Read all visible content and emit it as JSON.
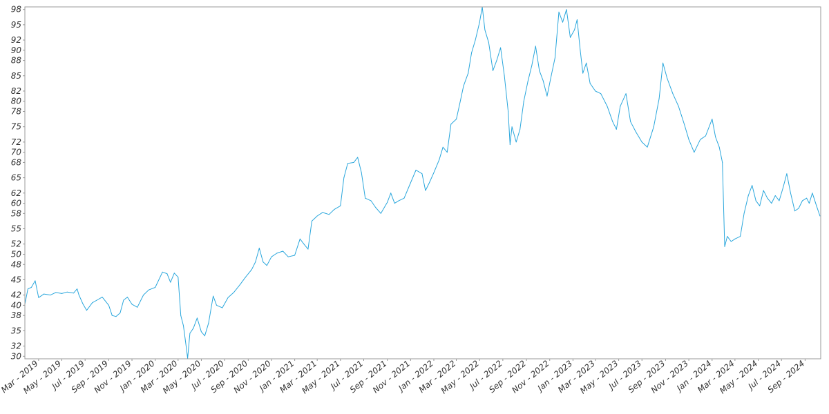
{
  "chart_data": {
    "type": "line",
    "title": "",
    "xlabel": "",
    "ylabel": "",
    "ylim": [
      29.5,
      98.5
    ],
    "grid": false,
    "legend": "none",
    "line_color": "#29a6dc",
    "y_ticks": [
      30,
      32,
      35,
      38,
      40,
      42,
      45,
      48,
      50,
      52,
      55,
      58,
      60,
      62,
      65,
      68,
      70,
      72,
      75,
      78,
      80,
      82,
      85,
      88,
      90,
      92,
      95,
      98
    ],
    "x_ticks": [
      {
        "label": "Mar - 2019",
        "x": "2019-03-01"
      },
      {
        "label": "May - 2019",
        "x": "2019-05-01"
      },
      {
        "label": "Jul - 2019",
        "x": "2019-07-01"
      },
      {
        "label": "Sep - 2019",
        "x": "2019-09-01"
      },
      {
        "label": "Nov - 2019",
        "x": "2019-11-01"
      },
      {
        "label": "Jan - 2020",
        "x": "2020-01-01"
      },
      {
        "label": "Mar - 2020",
        "x": "2020-03-01"
      },
      {
        "label": "May - 2020",
        "x": "2020-05-01"
      },
      {
        "label": "Jul - 2020",
        "x": "2020-07-01"
      },
      {
        "label": "Sep - 2020",
        "x": "2020-09-01"
      },
      {
        "label": "Nov - 2020",
        "x": "2020-11-01"
      },
      {
        "label": "Jan - 2021",
        "x": "2021-01-01"
      },
      {
        "label": "Mar - 2021",
        "x": "2021-03-01"
      },
      {
        "label": "May - 2021",
        "x": "2021-05-01"
      },
      {
        "label": "Jul - 2021",
        "x": "2021-07-01"
      },
      {
        "label": "Sep - 2021",
        "x": "2021-09-01"
      },
      {
        "label": "Nov - 2021",
        "x": "2021-11-01"
      },
      {
        "label": "Jan - 2022",
        "x": "2022-01-01"
      },
      {
        "label": "Mar - 2022",
        "x": "2022-03-01"
      },
      {
        "label": "May - 2022",
        "x": "2022-05-01"
      },
      {
        "label": "Jul - 2022",
        "x": "2022-07-01"
      },
      {
        "label": "Sep - 2022",
        "x": "2022-09-01"
      },
      {
        "label": "Nov - 2022",
        "x": "2022-11-01"
      },
      {
        "label": "Jan - 2023",
        "x": "2023-01-01"
      },
      {
        "label": "Mar - 2023",
        "x": "2023-03-01"
      },
      {
        "label": "May - 2023",
        "x": "2023-05-01"
      },
      {
        "label": "Jul - 2023",
        "x": "2023-07-01"
      },
      {
        "label": "Sep - 2023",
        "x": "2023-09-01"
      },
      {
        "label": "Nov - 2023",
        "x": "2023-11-01"
      },
      {
        "label": "Jan - 2024",
        "x": "2024-01-01"
      },
      {
        "label": "Mar - 2024",
        "x": "2024-03-01"
      },
      {
        "label": "May - 2024",
        "x": "2024-05-01"
      },
      {
        "label": "Jul - 2024",
        "x": "2024-07-01"
      },
      {
        "label": "Sep - 2024",
        "x": "2024-09-01"
      }
    ],
    "series": [
      {
        "points": [
          [
            "2019-01-24",
            40.2
          ],
          [
            "2019-02-01",
            43.2
          ],
          [
            "2019-02-10",
            43.5
          ],
          [
            "2019-02-20",
            44.8
          ],
          [
            "2019-03-01",
            41.5
          ],
          [
            "2019-03-15",
            42.2
          ],
          [
            "2019-04-01",
            42.0
          ],
          [
            "2019-04-15",
            42.5
          ],
          [
            "2019-05-01",
            42.3
          ],
          [
            "2019-05-15",
            42.6
          ],
          [
            "2019-06-01",
            42.4
          ],
          [
            "2019-06-10",
            43.2
          ],
          [
            "2019-06-15",
            42.0
          ],
          [
            "2019-06-25",
            40.3
          ],
          [
            "2019-07-05",
            39.0
          ],
          [
            "2019-07-20",
            40.5
          ],
          [
            "2019-08-01",
            41.0
          ],
          [
            "2019-08-15",
            41.6
          ],
          [
            "2019-09-01",
            40.0
          ],
          [
            "2019-09-10",
            38.0
          ],
          [
            "2019-09-20",
            37.8
          ],
          [
            "2019-10-01",
            38.5
          ],
          [
            "2019-10-10",
            41.0
          ],
          [
            "2019-10-20",
            41.6
          ],
          [
            "2019-11-01",
            40.2
          ],
          [
            "2019-11-15",
            39.6
          ],
          [
            "2019-12-01",
            42.0
          ],
          [
            "2019-12-15",
            43.0
          ],
          [
            "2020-01-01",
            43.5
          ],
          [
            "2020-01-20",
            46.5
          ],
          [
            "2020-02-01",
            46.2
          ],
          [
            "2020-02-10",
            44.5
          ],
          [
            "2020-02-20",
            46.3
          ],
          [
            "2020-03-01",
            45.5
          ],
          [
            "2020-03-08",
            38.0
          ],
          [
            "2020-03-15",
            36.0
          ],
          [
            "2020-03-22",
            32.0
          ],
          [
            "2020-03-26",
            29.6
          ],
          [
            "2020-04-01",
            34.5
          ],
          [
            "2020-04-10",
            35.5
          ],
          [
            "2020-04-20",
            37.5
          ],
          [
            "2020-05-01",
            34.8
          ],
          [
            "2020-05-10",
            34.0
          ],
          [
            "2020-05-20",
            36.5
          ],
          [
            "2020-06-01",
            41.8
          ],
          [
            "2020-06-10",
            40.0
          ],
          [
            "2020-06-25",
            39.5
          ],
          [
            "2020-07-10",
            41.5
          ],
          [
            "2020-07-25",
            42.5
          ],
          [
            "2020-08-10",
            44.0
          ],
          [
            "2020-08-25",
            45.5
          ],
          [
            "2020-09-10",
            47.0
          ],
          [
            "2020-09-20",
            48.5
          ],
          [
            "2020-09-30",
            51.2
          ],
          [
            "2020-10-10",
            48.5
          ],
          [
            "2020-10-20",
            47.8
          ],
          [
            "2020-11-01",
            49.5
          ],
          [
            "2020-11-15",
            50.2
          ],
          [
            "2020-12-01",
            50.6
          ],
          [
            "2020-12-15",
            49.5
          ],
          [
            "2021-01-01",
            49.8
          ],
          [
            "2021-01-15",
            53.0
          ],
          [
            "2021-01-25",
            52.0
          ],
          [
            "2021-02-05",
            51.0
          ],
          [
            "2021-02-15",
            56.5
          ],
          [
            "2021-03-01",
            57.5
          ],
          [
            "2021-03-15",
            58.2
          ],
          [
            "2021-04-01",
            57.8
          ],
          [
            "2021-04-15",
            58.8
          ],
          [
            "2021-05-01",
            59.5
          ],
          [
            "2021-05-10",
            65.0
          ],
          [
            "2021-05-20",
            67.8
          ],
          [
            "2021-06-05",
            68.0
          ],
          [
            "2021-06-15",
            69.0
          ],
          [
            "2021-06-25",
            66.0
          ],
          [
            "2021-07-05",
            61.0
          ],
          [
            "2021-07-20",
            60.5
          ],
          [
            "2021-08-01",
            59.2
          ],
          [
            "2021-08-15",
            58.0
          ],
          [
            "2021-09-01",
            60.2
          ],
          [
            "2021-09-10",
            62.0
          ],
          [
            "2021-09-20",
            60.0
          ],
          [
            "2021-10-01",
            60.5
          ],
          [
            "2021-10-15",
            61.0
          ],
          [
            "2021-11-01",
            64.0
          ],
          [
            "2021-11-15",
            66.5
          ],
          [
            "2021-12-01",
            65.8
          ],
          [
            "2021-12-10",
            62.5
          ],
          [
            "2021-12-20",
            64.0
          ],
          [
            "2022-01-01",
            66.0
          ],
          [
            "2022-01-15",
            68.5
          ],
          [
            "2022-01-25",
            71.0
          ],
          [
            "2022-02-05",
            70.0
          ],
          [
            "2022-02-15",
            75.5
          ],
          [
            "2022-03-01",
            76.5
          ],
          [
            "2022-03-10",
            79.5
          ],
          [
            "2022-03-20",
            83.0
          ],
          [
            "2022-04-01",
            85.5
          ],
          [
            "2022-04-10",
            89.5
          ],
          [
            "2022-04-20",
            92.0
          ],
          [
            "2022-05-01",
            95.5
          ],
          [
            "2022-05-08",
            98.5
          ],
          [
            "2022-05-15",
            94.0
          ],
          [
            "2022-05-25",
            91.5
          ],
          [
            "2022-06-05",
            86.0
          ],
          [
            "2022-06-15",
            88.0
          ],
          [
            "2022-06-25",
            90.5
          ],
          [
            "2022-07-05",
            85.0
          ],
          [
            "2022-07-15",
            78.0
          ],
          [
            "2022-07-20",
            71.5
          ],
          [
            "2022-07-25",
            75.0
          ],
          [
            "2022-08-05",
            72.0
          ],
          [
            "2022-08-15",
            74.5
          ],
          [
            "2022-08-25",
            80.0
          ],
          [
            "2022-09-05",
            84.0
          ],
          [
            "2022-09-15",
            87.0
          ],
          [
            "2022-09-25",
            90.8
          ],
          [
            "2022-10-05",
            86.0
          ],
          [
            "2022-10-15",
            84.0
          ],
          [
            "2022-10-25",
            81.0
          ],
          [
            "2022-11-05",
            85.0
          ],
          [
            "2022-11-15",
            88.5
          ],
          [
            "2022-11-25",
            97.5
          ],
          [
            "2022-12-05",
            95.5
          ],
          [
            "2022-12-15",
            98.0
          ],
          [
            "2022-12-25",
            92.5
          ],
          [
            "2023-01-05",
            94.0
          ],
          [
            "2023-01-12",
            96.0
          ],
          [
            "2023-01-20",
            90.0
          ],
          [
            "2023-01-27",
            85.5
          ],
          [
            "2023-02-05",
            87.5
          ],
          [
            "2023-02-15",
            83.5
          ],
          [
            "2023-03-01",
            82.0
          ],
          [
            "2023-03-15",
            81.5
          ],
          [
            "2023-04-01",
            79.0
          ],
          [
            "2023-04-15",
            76.0
          ],
          [
            "2023-04-25",
            74.5
          ],
          [
            "2023-05-05",
            79.0
          ],
          [
            "2023-05-20",
            81.5
          ],
          [
            "2023-06-01",
            76.0
          ],
          [
            "2023-06-15",
            74.0
          ],
          [
            "2023-07-01",
            72.0
          ],
          [
            "2023-07-15",
            71.0
          ],
          [
            "2023-08-01",
            75.0
          ],
          [
            "2023-08-15",
            80.5
          ],
          [
            "2023-08-25",
            87.5
          ],
          [
            "2023-09-05",
            84.5
          ],
          [
            "2023-09-20",
            81.5
          ],
          [
            "2023-10-05",
            79.0
          ],
          [
            "2023-10-20",
            75.5
          ],
          [
            "2023-11-01",
            72.5
          ],
          [
            "2023-11-15",
            70.0
          ],
          [
            "2023-12-01",
            72.5
          ],
          [
            "2023-12-15",
            73.2
          ],
          [
            "2024-01-01",
            76.5
          ],
          [
            "2024-01-10",
            73.0
          ],
          [
            "2024-01-20",
            71.0
          ],
          [
            "2024-01-28",
            68.0
          ],
          [
            "2024-02-03",
            51.5
          ],
          [
            "2024-02-10",
            53.5
          ],
          [
            "2024-02-20",
            52.5
          ],
          [
            "2024-03-01",
            53.0
          ],
          [
            "2024-03-15",
            53.5
          ],
          [
            "2024-03-25",
            58.0
          ],
          [
            "2024-04-05",
            61.5
          ],
          [
            "2024-04-15",
            63.5
          ],
          [
            "2024-04-25",
            60.5
          ],
          [
            "2024-05-05",
            59.5
          ],
          [
            "2024-05-15",
            62.5
          ],
          [
            "2024-05-25",
            61.0
          ],
          [
            "2024-06-05",
            60.0
          ],
          [
            "2024-06-15",
            61.5
          ],
          [
            "2024-06-25",
            60.5
          ],
          [
            "2024-07-05",
            63.0
          ],
          [
            "2024-07-15",
            65.8
          ],
          [
            "2024-07-25",
            62.0
          ],
          [
            "2024-08-05",
            58.5
          ],
          [
            "2024-08-15",
            59.0
          ],
          [
            "2024-08-25",
            60.5
          ],
          [
            "2024-09-05",
            61.0
          ],
          [
            "2024-09-12",
            60.0
          ],
          [
            "2024-09-20",
            62.0
          ],
          [
            "2024-10-01",
            59.5
          ],
          [
            "2024-10-10",
            57.5
          ]
        ]
      }
    ]
  }
}
